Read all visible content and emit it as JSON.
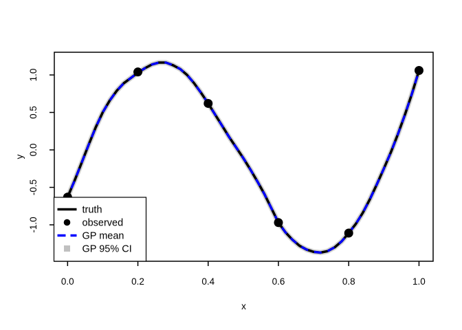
{
  "figure": {
    "background": "#ffffff"
  },
  "chart_data": {
    "type": "line",
    "title": "",
    "xlabel": "x",
    "ylabel": "y",
    "xlim": [
      -0.0378,
      1.0402
    ],
    "ylim": [
      -1.486,
      1.303
    ],
    "grid": false,
    "x_ticks": {
      "values": [
        0.0,
        0.2,
        0.4,
        0.6,
        0.8,
        1.0
      ],
      "labels": [
        "0.0",
        "0.2",
        "0.4",
        "0.6",
        "0.8",
        "1.0"
      ]
    },
    "y_ticks": {
      "values": [
        -1.0,
        -0.5,
        0.0,
        0.5,
        1.0
      ],
      "labels": [
        "-1.0",
        "-0.5",
        "0.0",
        "0.5",
        "1.0"
      ]
    },
    "series": [
      {
        "name": "GP 95% CI",
        "kind": "band",
        "color": "#d2d2d2",
        "stroke_width": 7.5,
        "points_from": "truth"
      },
      {
        "name": "truth",
        "kind": "line",
        "color": "#000000",
        "stroke_width": 3.6,
        "points": [
          [
            0.0,
            -0.63
          ],
          [
            0.02,
            -0.41
          ],
          [
            0.04,
            -0.17
          ],
          [
            0.06,
            0.07
          ],
          [
            0.08,
            0.3
          ],
          [
            0.1,
            0.5
          ],
          [
            0.12,
            0.66
          ],
          [
            0.14,
            0.79
          ],
          [
            0.16,
            0.89
          ],
          [
            0.18,
            0.96
          ],
          [
            0.2,
            1.03
          ],
          [
            0.22,
            1.09
          ],
          [
            0.24,
            1.14
          ],
          [
            0.26,
            1.165
          ],
          [
            0.28,
            1.165
          ],
          [
            0.3,
            1.13
          ],
          [
            0.32,
            1.08
          ],
          [
            0.34,
            1.0
          ],
          [
            0.36,
            0.89
          ],
          [
            0.38,
            0.76
          ],
          [
            0.4,
            0.62
          ],
          [
            0.42,
            0.47
          ],
          [
            0.44,
            0.32
          ],
          [
            0.46,
            0.17
          ],
          [
            0.48,
            0.03
          ],
          [
            0.5,
            -0.11
          ],
          [
            0.52,
            -0.26
          ],
          [
            0.54,
            -0.42
          ],
          [
            0.56,
            -0.59
          ],
          [
            0.58,
            -0.78
          ],
          [
            0.6,
            -0.97
          ],
          [
            0.62,
            -1.1
          ],
          [
            0.64,
            -1.2
          ],
          [
            0.66,
            -1.28
          ],
          [
            0.68,
            -1.33
          ],
          [
            0.7,
            -1.36
          ],
          [
            0.72,
            -1.37
          ],
          [
            0.74,
            -1.35
          ],
          [
            0.76,
            -1.3
          ],
          [
            0.78,
            -1.22
          ],
          [
            0.8,
            -1.11
          ],
          [
            0.82,
            -0.99
          ],
          [
            0.84,
            -0.84
          ],
          [
            0.86,
            -0.66
          ],
          [
            0.88,
            -0.46
          ],
          [
            0.9,
            -0.25
          ],
          [
            0.92,
            -0.03
          ],
          [
            0.94,
            0.21
          ],
          [
            0.96,
            0.47
          ],
          [
            0.98,
            0.75
          ],
          [
            1.0,
            1.06
          ]
        ]
      },
      {
        "name": "GP mean",
        "kind": "dashed-line",
        "color": "#0000ff",
        "stroke_width": 3.2,
        "dash": [
          11,
          9
        ],
        "points_from": "truth"
      },
      {
        "name": "observed",
        "kind": "points",
        "color": "#000000",
        "radius": 6.5,
        "points": [
          [
            0.0,
            -0.63
          ],
          [
            0.2,
            1.04
          ],
          [
            0.4,
            0.62
          ],
          [
            0.6,
            -0.97
          ],
          [
            0.8,
            -1.11
          ],
          [
            1.0,
            1.06
          ]
        ]
      }
    ],
    "legend": {
      "position": "bottomleft",
      "background": "#ffffff",
      "border_color": "#000000",
      "entries": [
        {
          "label": "truth",
          "swatch": "line",
          "color": "#000000"
        },
        {
          "label": "observed",
          "swatch": "point",
          "color": "#000000"
        },
        {
          "label": "GP mean",
          "swatch": "dashed-line",
          "color": "#0000ff"
        },
        {
          "label": "GP 95% CI",
          "swatch": "square",
          "color": "#c0c0c0"
        }
      ]
    }
  }
}
